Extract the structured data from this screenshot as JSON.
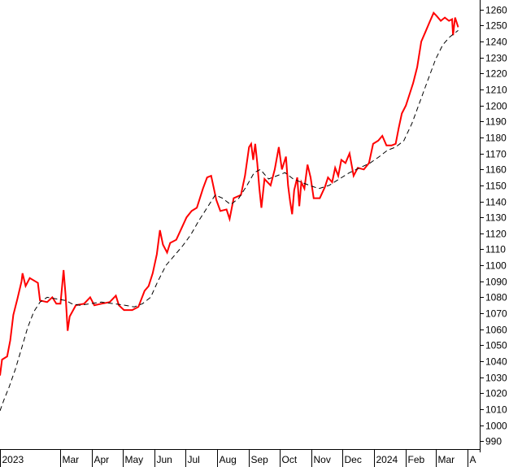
{
  "chart_data": {
    "type": "line",
    "title": "",
    "xlabel": "",
    "ylabel": "",
    "ylim": [
      985,
      1265
    ],
    "y_ticks": [
      990,
      1000,
      1010,
      1020,
      1030,
      1040,
      1050,
      1060,
      1070,
      1080,
      1090,
      1100,
      1110,
      1120,
      1130,
      1140,
      1150,
      1160,
      1170,
      1180,
      1190,
      1200,
      1210,
      1220,
      1230,
      1240,
      1250,
      1260
    ],
    "x_labels": [
      "2023",
      "Mar",
      "Apr",
      "May",
      "Jun",
      "Jul",
      "Aug",
      "Sep",
      "Oct",
      "Nov",
      "Dec",
      "2024",
      "Feb",
      "Mar",
      "A"
    ],
    "x_label_dates": [
      "2023-01-01",
      "2023-03-01",
      "2023-04-01",
      "2023-05-01",
      "2023-06-01",
      "2023-07-01",
      "2023-08-01",
      "2023-09-01",
      "2023-10-01",
      "2023-11-01",
      "2023-12-01",
      "2024-01-01",
      "2024-02-01",
      "2024-03-01",
      "2024-04-01"
    ],
    "xlim": [
      "2023-01-01",
      "2024-04-13"
    ],
    "grid": false,
    "series": [
      {
        "color": "#ff0000",
        "style": "solid",
        "points": [
          [
            "2023-01-01",
            1031
          ],
          [
            "2023-01-03",
            1041
          ],
          [
            "2023-01-08",
            1043
          ],
          [
            "2023-01-11",
            1053
          ],
          [
            "2023-01-14",
            1069
          ],
          [
            "2023-01-18",
            1079
          ],
          [
            "2023-01-22",
            1090
          ],
          [
            "2023-01-23",
            1095
          ],
          [
            "2023-01-26",
            1087
          ],
          [
            "2023-01-30",
            1092
          ],
          [
            "2023-02-07",
            1089
          ],
          [
            "2023-02-09",
            1078
          ],
          [
            "2023-02-16",
            1077
          ],
          [
            "2023-02-21",
            1080
          ],
          [
            "2023-02-25",
            1076
          ],
          [
            "2023-03-01",
            1076
          ],
          [
            "2023-03-04",
            1097
          ],
          [
            "2023-03-06",
            1081
          ],
          [
            "2023-03-08",
            1059
          ],
          [
            "2023-03-10",
            1068
          ],
          [
            "2023-03-16",
            1075
          ],
          [
            "2023-03-24",
            1076
          ],
          [
            "2023-03-30",
            1080
          ],
          [
            "2023-04-03",
            1075
          ],
          [
            "2023-04-10",
            1076
          ],
          [
            "2023-04-18",
            1077
          ],
          [
            "2023-04-24",
            1081
          ],
          [
            "2023-04-27",
            1075
          ],
          [
            "2023-05-02",
            1072
          ],
          [
            "2023-05-10",
            1072
          ],
          [
            "2023-05-16",
            1074
          ],
          [
            "2023-05-22",
            1084
          ],
          [
            "2023-05-26",
            1087
          ],
          [
            "2023-05-30",
            1095
          ],
          [
            "2023-06-03",
            1107
          ],
          [
            "2023-06-06",
            1122
          ],
          [
            "2023-06-09",
            1113
          ],
          [
            "2023-06-13",
            1108
          ],
          [
            "2023-06-16",
            1114
          ],
          [
            "2023-06-22",
            1116
          ],
          [
            "2023-06-27",
            1123
          ],
          [
            "2023-07-02",
            1130
          ],
          [
            "2023-07-07",
            1134
          ],
          [
            "2023-07-12",
            1136
          ],
          [
            "2023-07-18",
            1148
          ],
          [
            "2023-07-22",
            1155
          ],
          [
            "2023-07-26",
            1156
          ],
          [
            "2023-07-31",
            1141
          ],
          [
            "2023-08-04",
            1134
          ],
          [
            "2023-08-10",
            1135
          ],
          [
            "2023-08-13",
            1129
          ],
          [
            "2023-08-17",
            1142
          ],
          [
            "2023-08-24",
            1144
          ],
          [
            "2023-08-28",
            1156
          ],
          [
            "2023-09-01",
            1174
          ],
          [
            "2023-09-03",
            1176
          ],
          [
            "2023-09-05",
            1166
          ],
          [
            "2023-09-07",
            1176
          ],
          [
            "2023-09-09",
            1164
          ],
          [
            "2023-09-11",
            1148
          ],
          [
            "2023-09-13",
            1136
          ],
          [
            "2023-09-16",
            1154
          ],
          [
            "2023-09-22",
            1150
          ],
          [
            "2023-09-26",
            1160
          ],
          [
            "2023-09-30",
            1174
          ],
          [
            "2023-10-03",
            1160
          ],
          [
            "2023-10-07",
            1168
          ],
          [
            "2023-10-09",
            1150
          ],
          [
            "2023-10-11",
            1140
          ],
          [
            "2023-10-13",
            1132
          ],
          [
            "2023-10-15",
            1147
          ],
          [
            "2023-10-18",
            1155
          ],
          [
            "2023-10-20",
            1137
          ],
          [
            "2023-10-22",
            1152
          ],
          [
            "2023-10-25",
            1148
          ],
          [
            "2023-10-28",
            1163
          ],
          [
            "2023-10-31",
            1155
          ],
          [
            "2023-11-03",
            1142
          ],
          [
            "2023-11-09",
            1142
          ],
          [
            "2023-11-14",
            1149
          ],
          [
            "2023-11-17",
            1155
          ],
          [
            "2023-11-21",
            1152
          ],
          [
            "2023-11-24",
            1161
          ],
          [
            "2023-11-27",
            1156
          ],
          [
            "2023-11-30",
            1166
          ],
          [
            "2023-12-04",
            1164
          ],
          [
            "2023-12-08",
            1170
          ],
          [
            "2023-12-12",
            1156
          ],
          [
            "2023-12-16",
            1161
          ],
          [
            "2023-12-22",
            1160
          ],
          [
            "2023-12-27",
            1164
          ],
          [
            "2023-12-31",
            1176
          ],
          [
            "2024-01-05",
            1178
          ],
          [
            "2024-01-09",
            1181
          ],
          [
            "2024-01-13",
            1175
          ],
          [
            "2024-01-18",
            1175
          ],
          [
            "2024-01-22",
            1176
          ],
          [
            "2024-01-25",
            1186
          ],
          [
            "2024-01-28",
            1195
          ],
          [
            "2024-02-01",
            1200
          ],
          [
            "2024-02-05",
            1208
          ],
          [
            "2024-02-08",
            1214
          ],
          [
            "2024-02-12",
            1224
          ],
          [
            "2024-02-16",
            1240
          ],
          [
            "2024-02-20",
            1246
          ],
          [
            "2024-02-24",
            1252
          ],
          [
            "2024-02-28",
            1258
          ],
          [
            "2024-03-02",
            1256
          ],
          [
            "2024-03-06",
            1253
          ],
          [
            "2024-03-10",
            1255
          ],
          [
            "2024-03-14",
            1253
          ],
          [
            "2024-03-17",
            1254
          ],
          [
            "2024-03-18",
            1244
          ],
          [
            "2024-03-20",
            1255
          ],
          [
            "2024-03-23",
            1249
          ]
        ]
      },
      {
        "color": "#000000",
        "style": "dashed",
        "points": [
          [
            "2023-01-01",
            1009
          ],
          [
            "2023-01-05",
            1016
          ],
          [
            "2023-01-10",
            1024
          ],
          [
            "2023-01-16",
            1035
          ],
          [
            "2023-01-22",
            1048
          ],
          [
            "2023-01-28",
            1061
          ],
          [
            "2023-02-03",
            1071
          ],
          [
            "2023-02-09",
            1077
          ],
          [
            "2023-02-16",
            1080
          ],
          [
            "2023-02-25",
            1079
          ],
          [
            "2023-03-06",
            1078
          ],
          [
            "2023-03-12",
            1076
          ],
          [
            "2023-03-20",
            1075
          ],
          [
            "2023-03-30",
            1076
          ],
          [
            "2023-04-10",
            1077
          ],
          [
            "2023-04-22",
            1076
          ],
          [
            "2023-05-03",
            1075
          ],
          [
            "2023-05-12",
            1074
          ],
          [
            "2023-05-20",
            1076
          ],
          [
            "2023-05-28",
            1080
          ],
          [
            "2023-06-04",
            1090
          ],
          [
            "2023-06-12",
            1100
          ],
          [
            "2023-06-20",
            1106
          ],
          [
            "2023-06-28",
            1112
          ],
          [
            "2023-07-06",
            1119
          ],
          [
            "2023-07-14",
            1128
          ],
          [
            "2023-07-22",
            1136
          ],
          [
            "2023-07-30",
            1144
          ],
          [
            "2023-08-06",
            1142
          ],
          [
            "2023-08-14",
            1138
          ],
          [
            "2023-08-22",
            1142
          ],
          [
            "2023-08-30",
            1150
          ],
          [
            "2023-09-06",
            1158
          ],
          [
            "2023-09-12",
            1160
          ],
          [
            "2023-09-20",
            1154
          ],
          [
            "2023-09-28",
            1156
          ],
          [
            "2023-10-06",
            1158
          ],
          [
            "2023-10-14",
            1154
          ],
          [
            "2023-10-22",
            1152
          ],
          [
            "2023-10-30",
            1150
          ],
          [
            "2023-11-08",
            1148
          ],
          [
            "2023-11-18",
            1150
          ],
          [
            "2023-11-28",
            1154
          ],
          [
            "2023-12-08",
            1158
          ],
          [
            "2023-12-18",
            1161
          ],
          [
            "2023-12-28",
            1164
          ],
          [
            "2024-01-06",
            1168
          ],
          [
            "2024-01-14",
            1172
          ],
          [
            "2024-01-22",
            1174
          ],
          [
            "2024-01-30",
            1178
          ],
          [
            "2024-02-07",
            1189
          ],
          [
            "2024-02-15",
            1203
          ],
          [
            "2024-02-23",
            1217
          ],
          [
            "2024-03-01",
            1229
          ],
          [
            "2024-03-08",
            1238
          ],
          [
            "2024-03-15",
            1243
          ],
          [
            "2024-03-23",
            1247
          ]
        ]
      }
    ]
  }
}
